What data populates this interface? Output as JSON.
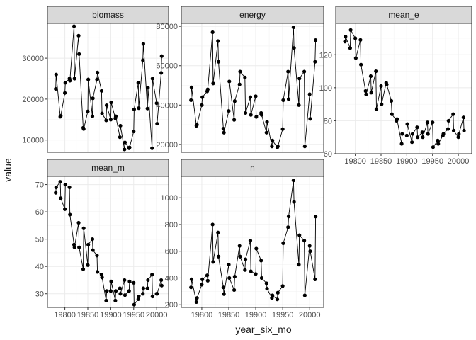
{
  "chart_data": {
    "type": "line",
    "facet_layout": "3 columns, 2 rows; free y scales",
    "xlabel": "year_six_mo",
    "ylabel": "value",
    "x_ticks": [
      19800,
      19850,
      19900,
      19950,
      20000
    ],
    "x_tick_labels": [
      "19800",
      "19850",
      "19900",
      "19950",
      "20000"
    ],
    "grid": true,
    "marker": "filled circle",
    "panels": [
      {
        "name": "biomass",
        "ylim": [
          7000,
          38500
        ],
        "y_ticks": [
          10000,
          20000,
          30000
        ],
        "y_tick_labels": [
          "10000",
          "20000",
          "30000"
        ],
        "x": [
          19780,
          19781,
          19790,
          19791,
          19800,
          19801,
          19810,
          19811,
          19820,
          19821,
          19830,
          19831,
          19840,
          19841,
          19850,
          19851,
          19860,
          19861,
          19870,
          19871,
          19880,
          19881,
          19890,
          19891,
          19900,
          19901,
          19910,
          19911,
          19920,
          19921,
          19930,
          19931,
          19940,
          19941,
          19950,
          19951,
          19960,
          19961,
          19970,
          19971,
          19980,
          19981,
          19990,
          19991,
          20000,
          20001,
          20010,
          20011
        ],
        "y": [
          22500,
          26000,
          15700,
          15900,
          21500,
          24000,
          25000,
          24500,
          37800,
          25000,
          35500,
          31000,
          13000,
          12700,
          17000,
          24800,
          15800,
          20200,
          24800,
          26500,
          22000,
          16500,
          14800,
          18500,
          15000,
          19200,
          15300,
          15800,
          10700,
          13500,
          7700,
          9400,
          8000,
          8200,
          12100,
          17500,
          24000,
          17800,
          29500,
          33500,
          17700,
          22800,
          8000,
          25000,
          19000,
          14000,
          26400,
          30500
        ]
      },
      {
        "name": "energy",
        "ylim": [
          16000,
          81500
        ],
        "y_ticks": [
          20000,
          40000,
          60000,
          80000
        ],
        "y_tick_labels": [
          "20000",
          "40000",
          "60000",
          "80000"
        ],
        "x": [
          19780,
          19781,
          19790,
          19791,
          19800,
          19801,
          19810,
          19811,
          19820,
          19821,
          19830,
          19831,
          19840,
          19841,
          19850,
          19851,
          19860,
          19861,
          19870,
          19871,
          19880,
          19881,
          19890,
          19891,
          19900,
          19901,
          19910,
          19911,
          19920,
          19921,
          19930,
          19931,
          19940,
          19941,
          19950,
          19951,
          19960,
          19961,
          19970,
          19971,
          19980,
          19981,
          19990,
          19991,
          20000,
          20001,
          20010,
          20011
        ],
        "y": [
          42500,
          49000,
          29500,
          30000,
          40000,
          44000,
          47000,
          48000,
          77000,
          51000,
          72500,
          62000,
          28000,
          26000,
          37000,
          52000,
          32500,
          42000,
          50500,
          57000,
          54000,
          36000,
          44000,
          35000,
          44500,
          34000,
          36000,
          35000,
          26000,
          31500,
          19000,
          22000,
          18500,
          19000,
          27800,
          42500,
          57000,
          43000,
          79500,
          69000,
          40000,
          53500,
          57000,
          19000,
          45500,
          33000,
          62000,
          73000
        ]
      },
      {
        "name": "mean_e",
        "ylim": [
          60,
          139
        ],
        "y_ticks": [
          60,
          80,
          100,
          120
        ],
        "y_tick_labels": [
          "60",
          "80",
          "100",
          "120"
        ],
        "x": [
          19780,
          19781,
          19790,
          19791,
          19800,
          19801,
          19810,
          19811,
          19820,
          19821,
          19830,
          19831,
          19840,
          19841,
          19850,
          19851,
          19860,
          19861,
          19870,
          19871,
          19880,
          19881,
          19890,
          19891,
          19900,
          19901,
          19910,
          19911,
          19920,
          19921,
          19930,
          19931,
          19940,
          19941,
          19950,
          19951,
          19960,
          19961,
          19970,
          19971,
          19980,
          19981,
          19990,
          19991,
          20000,
          20001,
          20010,
          20011
        ],
        "y": [
          128,
          131,
          124,
          135,
          130,
          118,
          129,
          114,
          98,
          96,
          107,
          97,
          110,
          87,
          101,
          90,
          103,
          102,
          92,
          84,
          80,
          81,
          66,
          72,
          71,
          78,
          67,
          72,
          76,
          70,
          73,
          70,
          79,
          72,
          79,
          64,
          68,
          66,
          71,
          72,
          75,
          80,
          84,
          74,
          70,
          72,
          82,
          74
        ]
      },
      {
        "name": "mean_m",
        "ylim": [
          25,
          73
        ],
        "y_ticks": [
          30,
          40,
          50,
          60,
          70
        ],
        "y_tick_labels": [
          "30",
          "40",
          "50",
          "60",
          "70"
        ],
        "x": [
          19780,
          19781,
          19790,
          19791,
          19800,
          19801,
          19810,
          19811,
          19820,
          19821,
          19830,
          19831,
          19840,
          19841,
          19850,
          19851,
          19860,
          19861,
          19870,
          19871,
          19880,
          19881,
          19890,
          19891,
          19900,
          19901,
          19910,
          19911,
          19920,
          19921,
          19930,
          19931,
          19940,
          19941,
          19950,
          19951,
          19960,
          19961,
          19970,
          19971,
          19980,
          19981,
          19990,
          19991,
          20000,
          20001,
          20010,
          20011
        ],
        "y": [
          67,
          69,
          71,
          65,
          61,
          70,
          69,
          59,
          48,
          47,
          56,
          47,
          39,
          54,
          40.5,
          48,
          50,
          46,
          44,
          38,
          37,
          36,
          27.5,
          31,
          31,
          34.5,
          27.5,
          31,
          32,
          30,
          35,
          29.5,
          31,
          34.5,
          34,
          26,
          28,
          29,
          30,
          32,
          32,
          35,
          37,
          29,
          30,
          30,
          35,
          33
        ]
      },
      {
        "name": "n",
        "ylim": [
          180,
          1160
        ],
        "y_ticks": [
          200,
          400,
          600,
          800,
          1000
        ],
        "y_tick_labels": [
          "200",
          "400",
          "600",
          "800",
          "1000"
        ],
        "x": [
          19780,
          19781,
          19790,
          19791,
          19800,
          19801,
          19810,
          19811,
          19820,
          19821,
          19830,
          19831,
          19840,
          19841,
          19850,
          19851,
          19860,
          19861,
          19870,
          19871,
          19880,
          19881,
          19890,
          19891,
          19900,
          19901,
          19910,
          19911,
          19920,
          19921,
          19930,
          19931,
          19940,
          19941,
          19950,
          19951,
          19960,
          19961,
          19970,
          19971,
          19980,
          19981,
          19990,
          19991,
          20000,
          20001,
          20010,
          20011
        ],
        "y": [
          330,
          390,
          220,
          250,
          350,
          390,
          420,
          380,
          800,
          520,
          740,
          560,
          330,
          280,
          500,
          400,
          310,
          410,
          640,
          560,
          460,
          540,
          680,
          450,
          430,
          620,
          530,
          400,
          360,
          320,
          250,
          270,
          240,
          290,
          340,
          660,
          780,
          860,
          1130,
          970,
          500,
          720,
          680,
          270,
          640,
          600,
          390,
          860
        ]
      }
    ]
  }
}
